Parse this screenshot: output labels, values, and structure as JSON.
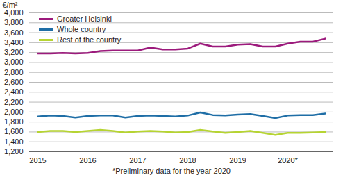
{
  "chart_data": {
    "type": "line",
    "ylabel": "€/m²",
    "caption": "*Preliminary data for the year 2020",
    "categories": [
      "2015",
      null,
      null,
      null,
      "2016",
      null,
      null,
      null,
      "2017",
      null,
      null,
      null,
      "2018",
      null,
      null,
      null,
      "2019",
      null,
      null,
      null,
      "2020*",
      null,
      null,
      null
    ],
    "series": [
      {
        "name": "Greater Helsinki",
        "color": "#9c1a7c",
        "values": [
          3180,
          3180,
          3190,
          3180,
          3190,
          3230,
          3240,
          3240,
          3240,
          3300,
          3260,
          3260,
          3280,
          3380,
          3320,
          3320,
          3360,
          3370,
          3320,
          3320,
          3380,
          3420,
          3420,
          3480
        ]
      },
      {
        "name": "Whole country",
        "color": "#1f6ea6",
        "values": [
          1910,
          1930,
          1920,
          1890,
          1920,
          1930,
          1930,
          1890,
          1920,
          1930,
          1920,
          1910,
          1930,
          1990,
          1940,
          1930,
          1950,
          1960,
          1920,
          1880,
          1930,
          1940,
          1940,
          1970
        ]
      },
      {
        "name": "Rest of the country",
        "color": "#b6d432",
        "values": [
          1600,
          1620,
          1620,
          1600,
          1620,
          1640,
          1620,
          1590,
          1610,
          1620,
          1610,
          1590,
          1600,
          1640,
          1610,
          1580,
          1600,
          1620,
          1580,
          1540,
          1580,
          1580,
          1590,
          1600
        ]
      }
    ],
    "ylim": [
      1200,
      4000
    ],
    "yticks": [
      1200,
      1400,
      1600,
      1800,
      2000,
      2200,
      2400,
      2600,
      2800,
      3000,
      3200,
      3400,
      3600,
      3800,
      4000
    ],
    "grid": true,
    "legend": "top-left"
  }
}
